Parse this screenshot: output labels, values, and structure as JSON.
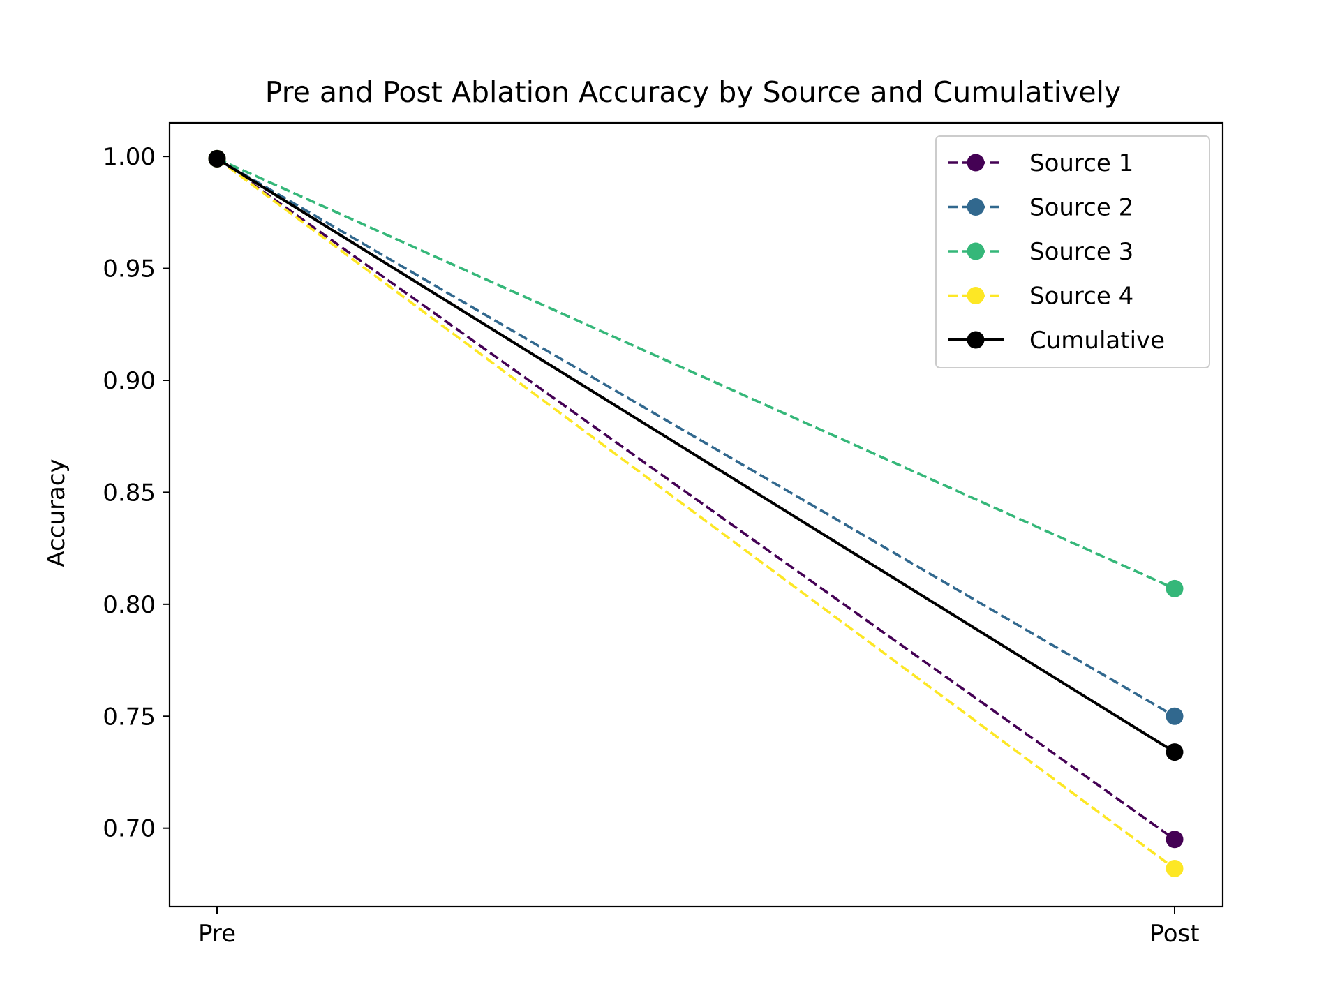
{
  "chart_data": {
    "type": "line",
    "title": "Pre and Post Ablation Accuracy by Source and Cumulatively",
    "xlabel": "",
    "ylabel": "Accuracy",
    "categories": [
      "Pre",
      "Post"
    ],
    "ylim": [
      0.665,
      1.015
    ],
    "yticks": [
      0.7,
      0.75,
      0.8,
      0.85,
      0.9,
      0.95,
      1.0
    ],
    "ytick_labels": [
      "0.70",
      "0.75",
      "0.80",
      "0.85",
      "0.90",
      "0.95",
      "1.00"
    ],
    "grid": false,
    "legend_position": "top-right",
    "series": [
      {
        "name": "Source 1",
        "values": [
          0.999,
          0.695
        ],
        "color": "#440154",
        "style": "dashed"
      },
      {
        "name": "Source 2",
        "values": [
          0.999,
          0.75
        ],
        "color": "#31688e",
        "style": "dashed"
      },
      {
        "name": "Source 3",
        "values": [
          0.999,
          0.807
        ],
        "color": "#35b779",
        "style": "dashed"
      },
      {
        "name": "Source 4",
        "values": [
          0.999,
          0.682
        ],
        "color": "#fde725",
        "style": "dashed"
      },
      {
        "name": "Cumulative",
        "values": [
          0.999,
          0.734
        ],
        "color": "#000000",
        "style": "solid"
      }
    ]
  }
}
